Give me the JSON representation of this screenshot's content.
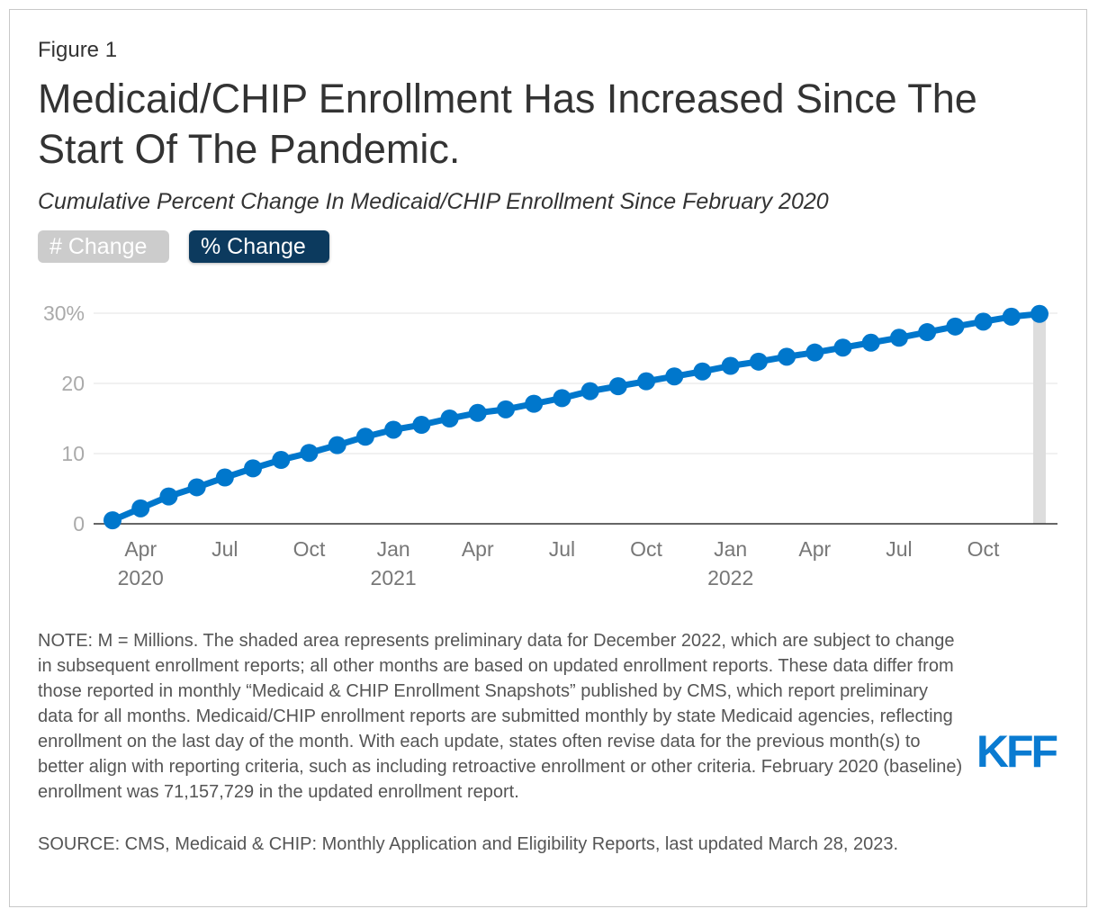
{
  "figure_label": "Figure 1",
  "title": "Medicaid/CHIP Enrollment Has Increased Since The Start Of The Pandemic.",
  "subtitle": "Cumulative Percent Change In Medicaid/CHIP Enrollment Since February 2020",
  "toggles": {
    "number_label": "# Change",
    "percent_label": "% Change",
    "selected": "% Change"
  },
  "colors": {
    "series": "#0077cc",
    "active_toggle": "#0c3a5e",
    "inactive_toggle": "#cccccc",
    "preliminary_shade": "#dddddd",
    "logo": "#0a7bd1"
  },
  "chart_data": {
    "type": "line",
    "title": "",
    "xlabel": "",
    "ylabel": "",
    "ylim": [
      0,
      30
    ],
    "y_ticks": [
      {
        "value": 0,
        "label": "0"
      },
      {
        "value": 10,
        "label": "10"
      },
      {
        "value": 20,
        "label": "20"
      },
      {
        "value": 30,
        "label": "30%"
      }
    ],
    "x_ticks": [
      {
        "index": 1,
        "label": "Apr",
        "year": "2020"
      },
      {
        "index": 4,
        "label": "Jul",
        "year": ""
      },
      {
        "index": 7,
        "label": "Oct",
        "year": ""
      },
      {
        "index": 10,
        "label": "Jan",
        "year": "2021"
      },
      {
        "index": 13,
        "label": "Apr",
        "year": ""
      },
      {
        "index": 16,
        "label": "Jul",
        "year": ""
      },
      {
        "index": 19,
        "label": "Oct",
        "year": ""
      },
      {
        "index": 22,
        "label": "Jan",
        "year": "2022"
      },
      {
        "index": 25,
        "label": "Apr",
        "year": ""
      },
      {
        "index": 28,
        "label": "Jul",
        "year": ""
      },
      {
        "index": 31,
        "label": "Oct",
        "year": ""
      }
    ],
    "x": [
      "Mar 2020",
      "Apr 2020",
      "May 2020",
      "Jun 2020",
      "Jul 2020",
      "Aug 2020",
      "Sep 2020",
      "Oct 2020",
      "Nov 2020",
      "Dec 2020",
      "Jan 2021",
      "Feb 2021",
      "Mar 2021",
      "Apr 2021",
      "May 2021",
      "Jun 2021",
      "Jul 2021",
      "Aug 2021",
      "Sep 2021",
      "Oct 2021",
      "Nov 2021",
      "Dec 2021",
      "Jan 2022",
      "Feb 2022",
      "Mar 2022",
      "Apr 2022",
      "May 2022",
      "Jun 2022",
      "Jul 2022",
      "Aug 2022",
      "Sep 2022",
      "Oct 2022",
      "Nov 2022",
      "Dec 2022"
    ],
    "series": [
      {
        "values": [
          0.5,
          2.2,
          3.9,
          5.2,
          6.6,
          7.9,
          9.1,
          10.1,
          11.2,
          12.4,
          13.4,
          14.1,
          15.0,
          15.8,
          16.3,
          17.1,
          17.9,
          18.9,
          19.6,
          20.3,
          21.0,
          21.7,
          22.5,
          23.1,
          23.8,
          24.4,
          25.1,
          25.8,
          26.5,
          27.3,
          28.1,
          28.8,
          29.5,
          29.9
        ]
      }
    ],
    "preliminary_index": 33,
    "grid": true
  },
  "note": "NOTE: M = Millions. The shaded area represents preliminary data for December 2022, which are subject to change in subsequent enrollment reports; all other months are based on updated enrollment reports. These data differ from those reported in monthly “Medicaid & CHIP Enrollment Snapshots” published by CMS, which report preliminary data for all months. Medicaid/CHIP enrollment reports are submitted monthly by state Medicaid agencies, reflecting enrollment on the last day of the month. With each update, states often revise data for the previous month(s) to better align with reporting criteria, such as including retroactive enrollment or other criteria. February 2020 (baseline) enrollment was 71,157,729 in the updated enrollment report.",
  "source": "SOURCE: CMS, Medicaid & CHIP: Monthly Application and Eligibility Reports, last updated March 28, 2023.",
  "logo": {
    "text": "KFF",
    "icon": "kff-logo"
  }
}
